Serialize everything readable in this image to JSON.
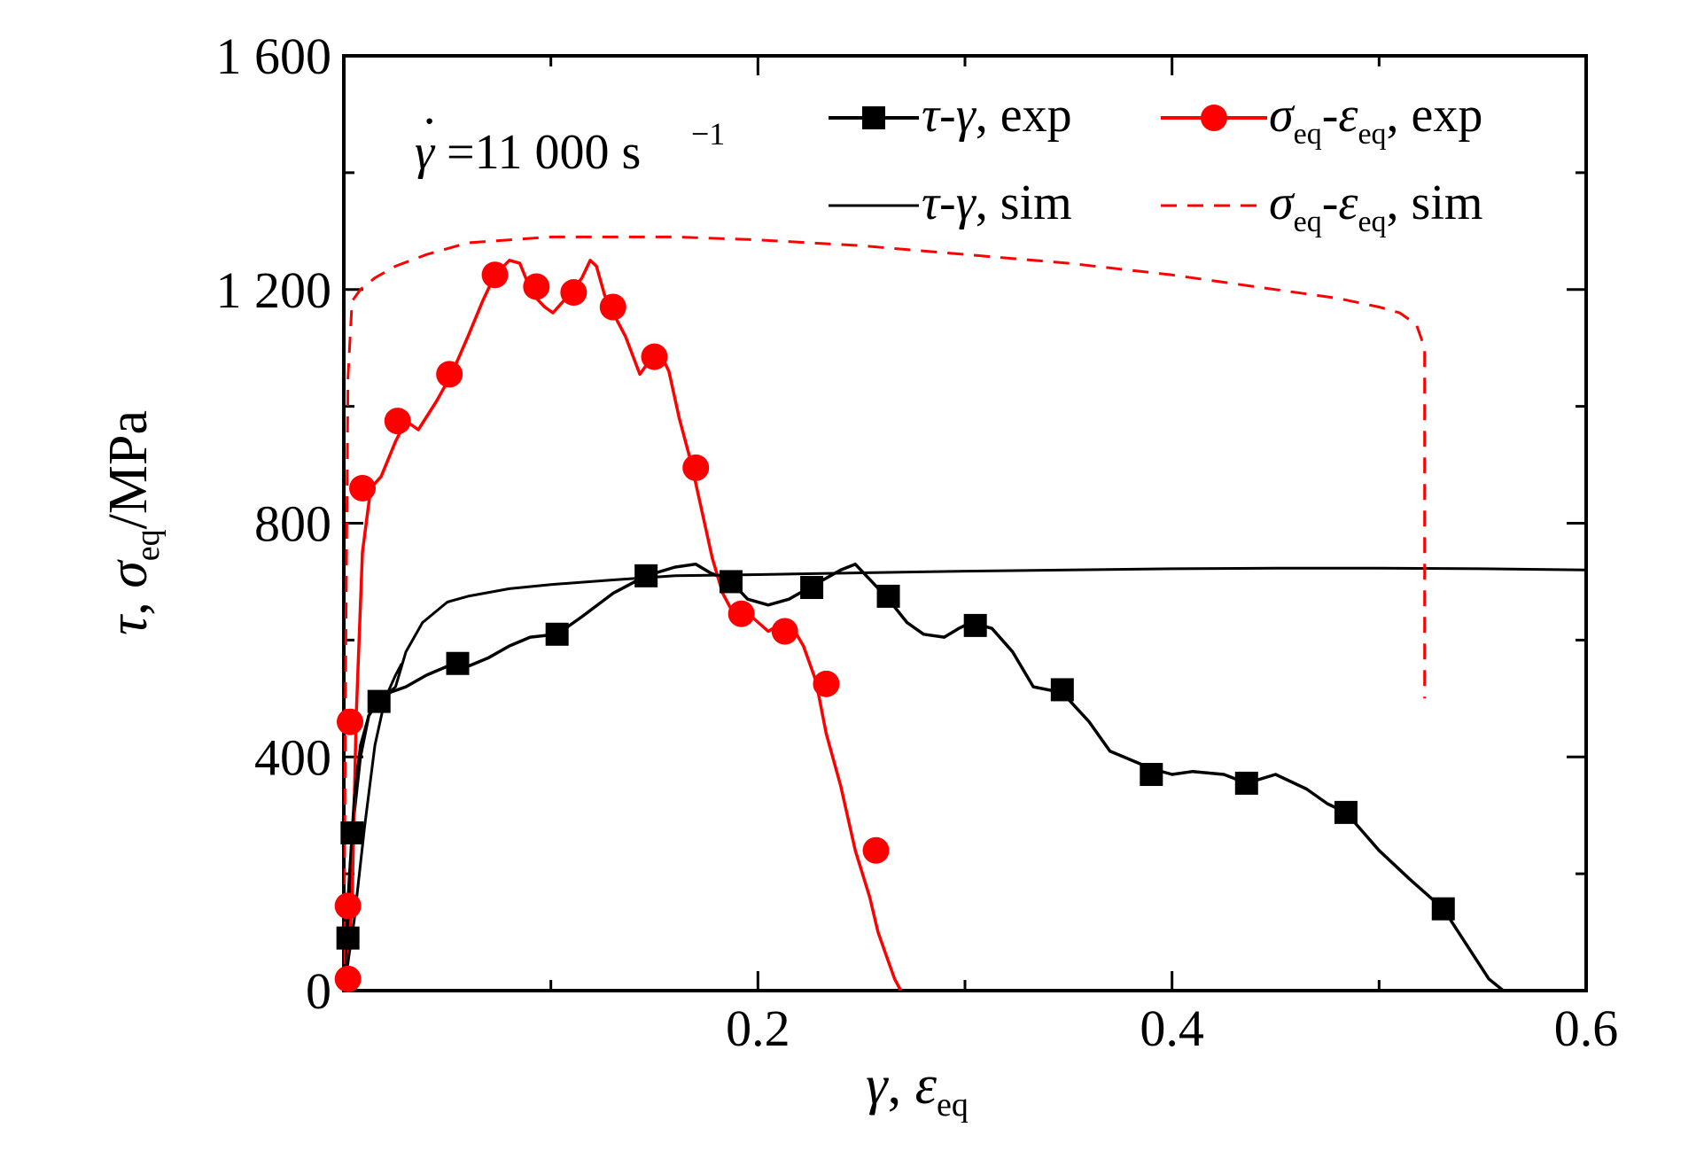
{
  "chart_data": {
    "type": "line",
    "rate_annotation": {
      "symbol": "γ",
      "equals": "=11 000 s",
      "exponent": "−1"
    },
    "xlabel": {
      "gamma": "γ",
      "comma": ", ",
      "epsilon": "ε",
      "subscript": "eq"
    },
    "ylabel": {
      "tau": "τ",
      "comma": ", ",
      "sigma": "σ",
      "subscript": "eq",
      "unit": "/MPa"
    },
    "xlim": [
      0,
      0.6
    ],
    "ylim": [
      0,
      1600
    ],
    "x_ticks": [
      0,
      0.2,
      0.4,
      0.6
    ],
    "x_tick_labels": [
      "",
      "0.2",
      "0.4",
      "0.6"
    ],
    "y_ticks": [
      0,
      400,
      800,
      1200,
      1600
    ],
    "y_tick_labels": [
      "0",
      "400",
      "800",
      "1 200",
      "1 600"
    ],
    "grid": false,
    "legend_position": "top-right",
    "colors": {
      "black": "#000000",
      "red": "#ff0000"
    },
    "series": [
      {
        "name": "τ-γ, exp",
        "legend": {
          "a": "τ",
          "sep": "-",
          "b": "γ",
          "suffix": ", exp"
        },
        "color": "#000000",
        "style": "solid",
        "marker": "square",
        "x": [
          0,
          0.002,
          0.004,
          0.008,
          0.012,
          0.017,
          0.022,
          0.03,
          0.04,
          0.05,
          0.055,
          0.06,
          0.07,
          0.08,
          0.09,
          0.103,
          0.115,
          0.13,
          0.146,
          0.16,
          0.17,
          0.177,
          0.187,
          0.195,
          0.205,
          0.215,
          0.225,
          0.24,
          0.247,
          0.255,
          0.263,
          0.272,
          0.28,
          0.29,
          0.297,
          0.303,
          0.313,
          0.323,
          0.333,
          0.347,
          0.36,
          0.37,
          0.38,
          0.39,
          0.4,
          0.41,
          0.425,
          0.436,
          0.45,
          0.465,
          0.475,
          0.484,
          0.5,
          0.515,
          0.531,
          0.542,
          0.553,
          0.56
        ],
        "y": [
          0,
          90,
          270,
          400,
          470,
          500,
          510,
          520,
          540,
          555,
          560,
          555,
          570,
          590,
          605,
          610,
          640,
          680,
          710,
          725,
          730,
          715,
          700,
          670,
          660,
          670,
          690,
          720,
          730,
          700,
          670,
          630,
          610,
          605,
          620,
          630,
          620,
          580,
          520,
          510,
          460,
          410,
          395,
          380,
          370,
          375,
          370,
          355,
          370,
          345,
          320,
          305,
          240,
          190,
          140,
          80,
          20,
          0
        ],
        "markers": [
          [
            0.002,
            90
          ],
          [
            0.004,
            270
          ],
          [
            0.017,
            495
          ],
          [
            0.055,
            560
          ],
          [
            0.103,
            610
          ],
          [
            0.146,
            710
          ],
          [
            0.187,
            700
          ],
          [
            0.226,
            690
          ],
          [
            0.263,
            675
          ],
          [
            0.305,
            625
          ],
          [
            0.347,
            515
          ],
          [
            0.39,
            370
          ],
          [
            0.436,
            355
          ],
          [
            0.484,
            305
          ],
          [
            0.531,
            140
          ]
        ]
      },
      {
        "name": "σeq-εeq, exp",
        "legend": {
          "a": "σ",
          "a_sub": "eq",
          "sep": "-",
          "b": "ε",
          "b_sub": "eq",
          "suffix": ", exp"
        },
        "color": "#ff0000",
        "style": "solid",
        "marker": "circle",
        "x": [
          0,
          0.002,
          0.004,
          0.006,
          0.009,
          0.013,
          0.018,
          0.025,
          0.03,
          0.036,
          0.045,
          0.052,
          0.06,
          0.067,
          0.073,
          0.08,
          0.085,
          0.089,
          0.093,
          0.097,
          0.101,
          0.106,
          0.11,
          0.115,
          0.119,
          0.122,
          0.126,
          0.13,
          0.136,
          0.143,
          0.148,
          0.153,
          0.157,
          0.162,
          0.168,
          0.173,
          0.178,
          0.183,
          0.189,
          0.197,
          0.205,
          0.212,
          0.217,
          0.222,
          0.228,
          0.233,
          0.24,
          0.247,
          0.254,
          0.258,
          0.262,
          0.266,
          0.269
        ],
        "y": [
          0,
          50,
          150,
          470,
          750,
          860,
          880,
          940,
          975,
          960,
          1010,
          1055,
          1120,
          1180,
          1225,
          1250,
          1245,
          1210,
          1185,
          1170,
          1160,
          1180,
          1195,
          1220,
          1250,
          1240,
          1190,
          1160,
          1120,
          1055,
          1080,
          1090,
          1060,
          980,
          900,
          820,
          740,
          680,
          640,
          640,
          615,
          630,
          620,
          590,
          530,
          440,
          350,
          240,
          160,
          100,
          60,
          20,
          0
        ],
        "markers": [
          [
            0.002,
            20
          ],
          [
            0.002,
            145
          ],
          [
            0.003,
            460
          ],
          [
            0.009,
            860
          ],
          [
            0.026,
            975
          ],
          [
            0.051,
            1055
          ],
          [
            0.073,
            1225
          ],
          [
            0.093,
            1205
          ],
          [
            0.111,
            1195
          ],
          [
            0.13,
            1170
          ],
          [
            0.15,
            1085
          ],
          [
            0.17,
            895
          ],
          [
            0.192,
            645
          ],
          [
            0.213,
            615
          ],
          [
            0.233,
            525
          ],
          [
            0.257,
            240
          ]
        ]
      },
      {
        "name": "τ-γ, sim",
        "legend": {
          "a": "τ",
          "sep": "-",
          "b": "γ",
          "suffix": ", sim"
        },
        "color": "#000000",
        "style": "solid",
        "marker": "none",
        "x": [
          0,
          0.002,
          0.005,
          0.008,
          0.012,
          0.016,
          0.02,
          0.025,
          0.03,
          0.038,
          0.05,
          0.06,
          0.08,
          0.1,
          0.13,
          0.16,
          0.2,
          0.25,
          0.3,
          0.35,
          0.4,
          0.45,
          0.5,
          0.55,
          0.6
        ],
        "y": [
          0,
          160,
          330,
          420,
          470,
          490,
          505,
          520,
          580,
          630,
          665,
          675,
          688,
          695,
          703,
          710,
          712,
          715,
          718,
          720,
          722,
          723,
          723,
          722,
          720
        ]
      },
      {
        "name": "τ-γ, sim (rise)",
        "legend_hidden": true,
        "color": "#000000",
        "style": "solid",
        "marker": "none",
        "x": [
          0,
          0.005,
          0.01,
          0.015,
          0.02,
          0.025,
          0.028
        ],
        "y": [
          0,
          120,
          280,
          420,
          500,
          540,
          560
        ]
      },
      {
        "name": "σeq-εeq, sim",
        "legend": {
          "a": "σ",
          "a_sub": "eq",
          "sep": "-",
          "b": "ε",
          "b_sub": "eq",
          "suffix": ", sim"
        },
        "color": "#ff0000",
        "style": "dashed",
        "marker": "none",
        "x": [
          0,
          0.001,
          0.002,
          0.004,
          0.008,
          0.015,
          0.025,
          0.04,
          0.06,
          0.08,
          0.1,
          0.13,
          0.16,
          0.2,
          0.25,
          0.3,
          0.35,
          0.4,
          0.45,
          0.48,
          0.5,
          0.51,
          0.518,
          0.522,
          0.522
        ],
        "y": [
          0,
          600,
          1050,
          1180,
          1200,
          1220,
          1240,
          1260,
          1280,
          1285,
          1290,
          1290,
          1290,
          1285,
          1275,
          1260,
          1245,
          1225,
          1200,
          1185,
          1170,
          1160,
          1140,
          1100,
          500
        ]
      }
    ]
  }
}
